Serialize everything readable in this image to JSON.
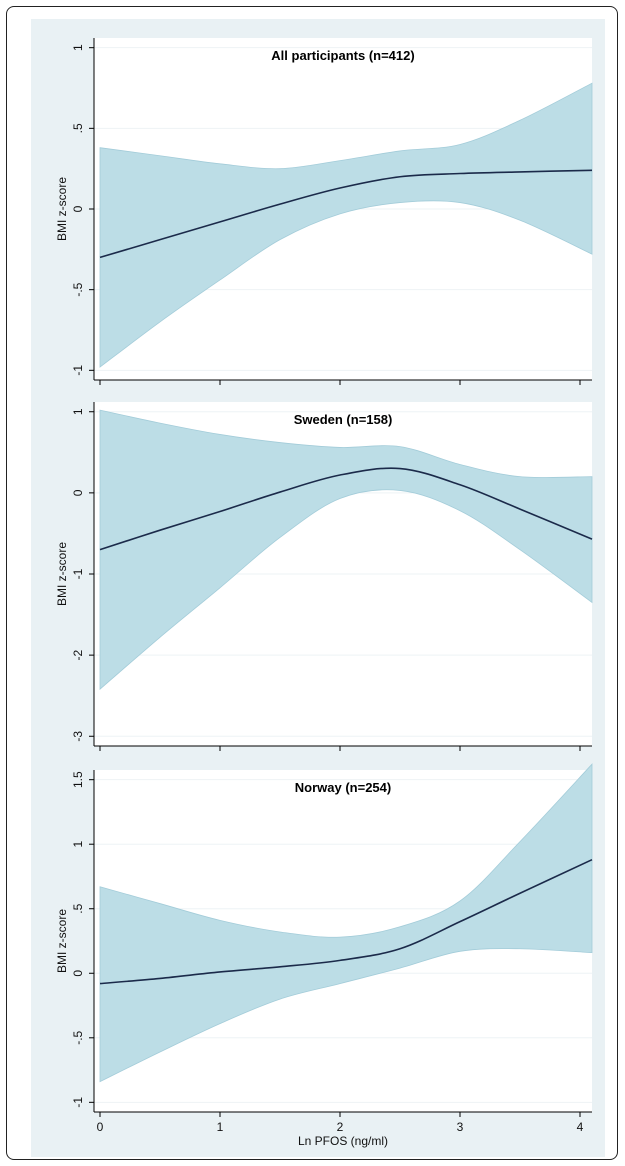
{
  "chart_data": [
    {
      "type": "area",
      "title": "All participants (n=412)",
      "xlabel": "",
      "ylabel": "BMI z-score",
      "ylim": [
        -1,
        1
      ],
      "xlim": [
        -0.05,
        4.1
      ],
      "yticks": [
        "1",
        ".5",
        "0",
        "-.5",
        "-1"
      ],
      "ytick_values": [
        1,
        0.5,
        0,
        -0.5,
        -1
      ],
      "x": [
        0,
        0.5,
        1,
        1.5,
        2,
        2.5,
        3,
        3.5,
        4.1
      ],
      "series": [
        {
          "role": "estimate",
          "values": [
            -0.3,
            -0.19,
            -0.08,
            0.03,
            0.13,
            0.2,
            0.22,
            0.23,
            0.24
          ]
        },
        {
          "role": "upper_ci",
          "values": [
            0.38,
            0.33,
            0.28,
            0.25,
            0.3,
            0.36,
            0.4,
            0.55,
            0.78
          ]
        },
        {
          "role": "lower_ci",
          "values": [
            -0.98,
            -0.7,
            -0.44,
            -0.19,
            -0.03,
            0.04,
            0.04,
            -0.07,
            -0.28
          ]
        }
      ]
    },
    {
      "type": "area",
      "title": "Sweden (n=158)",
      "xlabel": "",
      "ylabel": "BMI z-score",
      "ylim": [
        -3,
        1
      ],
      "xlim": [
        -0.05,
        4.1
      ],
      "yticks": [
        "1",
        "0",
        "-1",
        "-2",
        "-3"
      ],
      "ytick_values": [
        1,
        0,
        -1,
        -2,
        -3
      ],
      "x": [
        0,
        0.5,
        1,
        1.5,
        2,
        2.5,
        3,
        3.5,
        4.1
      ],
      "series": [
        {
          "role": "estimate",
          "values": [
            -0.7,
            -0.46,
            -0.23,
            0.01,
            0.22,
            0.3,
            0.1,
            -0.2,
            -0.57
          ]
        },
        {
          "role": "upper_ci",
          "values": [
            1.02,
            0.86,
            0.72,
            0.62,
            0.56,
            0.57,
            0.35,
            0.2,
            0.2
          ]
        },
        {
          "role": "lower_ci",
          "values": [
            -2.42,
            -1.78,
            -1.17,
            -0.55,
            -0.07,
            0.03,
            -0.22,
            -0.7,
            -1.35
          ]
        }
      ]
    },
    {
      "type": "area",
      "title": "Norway (n=254)",
      "xlabel": "Ln PFOS (ng/ml)",
      "ylabel": "BMI z-score",
      "ylim": [
        -1,
        1.5
      ],
      "xlim": [
        -0.05,
        4.1
      ],
      "yticks": [
        "1.5",
        "1",
        ".5",
        "0",
        "-.5",
        "-1"
      ],
      "ytick_values": [
        1.5,
        1,
        0.5,
        0,
        -0.5,
        -1
      ],
      "xticks": [
        "0",
        "1",
        "2",
        "3",
        "4"
      ],
      "xtick_values": [
        0,
        1,
        2,
        3,
        4
      ],
      "x": [
        0,
        0.5,
        1,
        1.5,
        2,
        2.5,
        3,
        3.5,
        4.1
      ],
      "series": [
        {
          "role": "estimate",
          "values": [
            -0.08,
            -0.04,
            0.01,
            0.05,
            0.1,
            0.19,
            0.4,
            0.62,
            0.88
          ]
        },
        {
          "role": "upper_ci",
          "values": [
            0.67,
            0.54,
            0.41,
            0.32,
            0.28,
            0.36,
            0.56,
            1.02,
            1.62
          ]
        },
        {
          "role": "lower_ci",
          "values": [
            -0.84,
            -0.61,
            -0.39,
            -0.2,
            -0.08,
            0.04,
            0.17,
            0.19,
            0.16
          ]
        }
      ]
    }
  ],
  "colors": {
    "band_fill": "#bcdde6",
    "band_edge": "#a3ccd9",
    "line": "#1b2a4a",
    "grid": "#ffffff",
    "panel_bg": "#ffffff",
    "outer_bg": "#e9f1f4"
  }
}
